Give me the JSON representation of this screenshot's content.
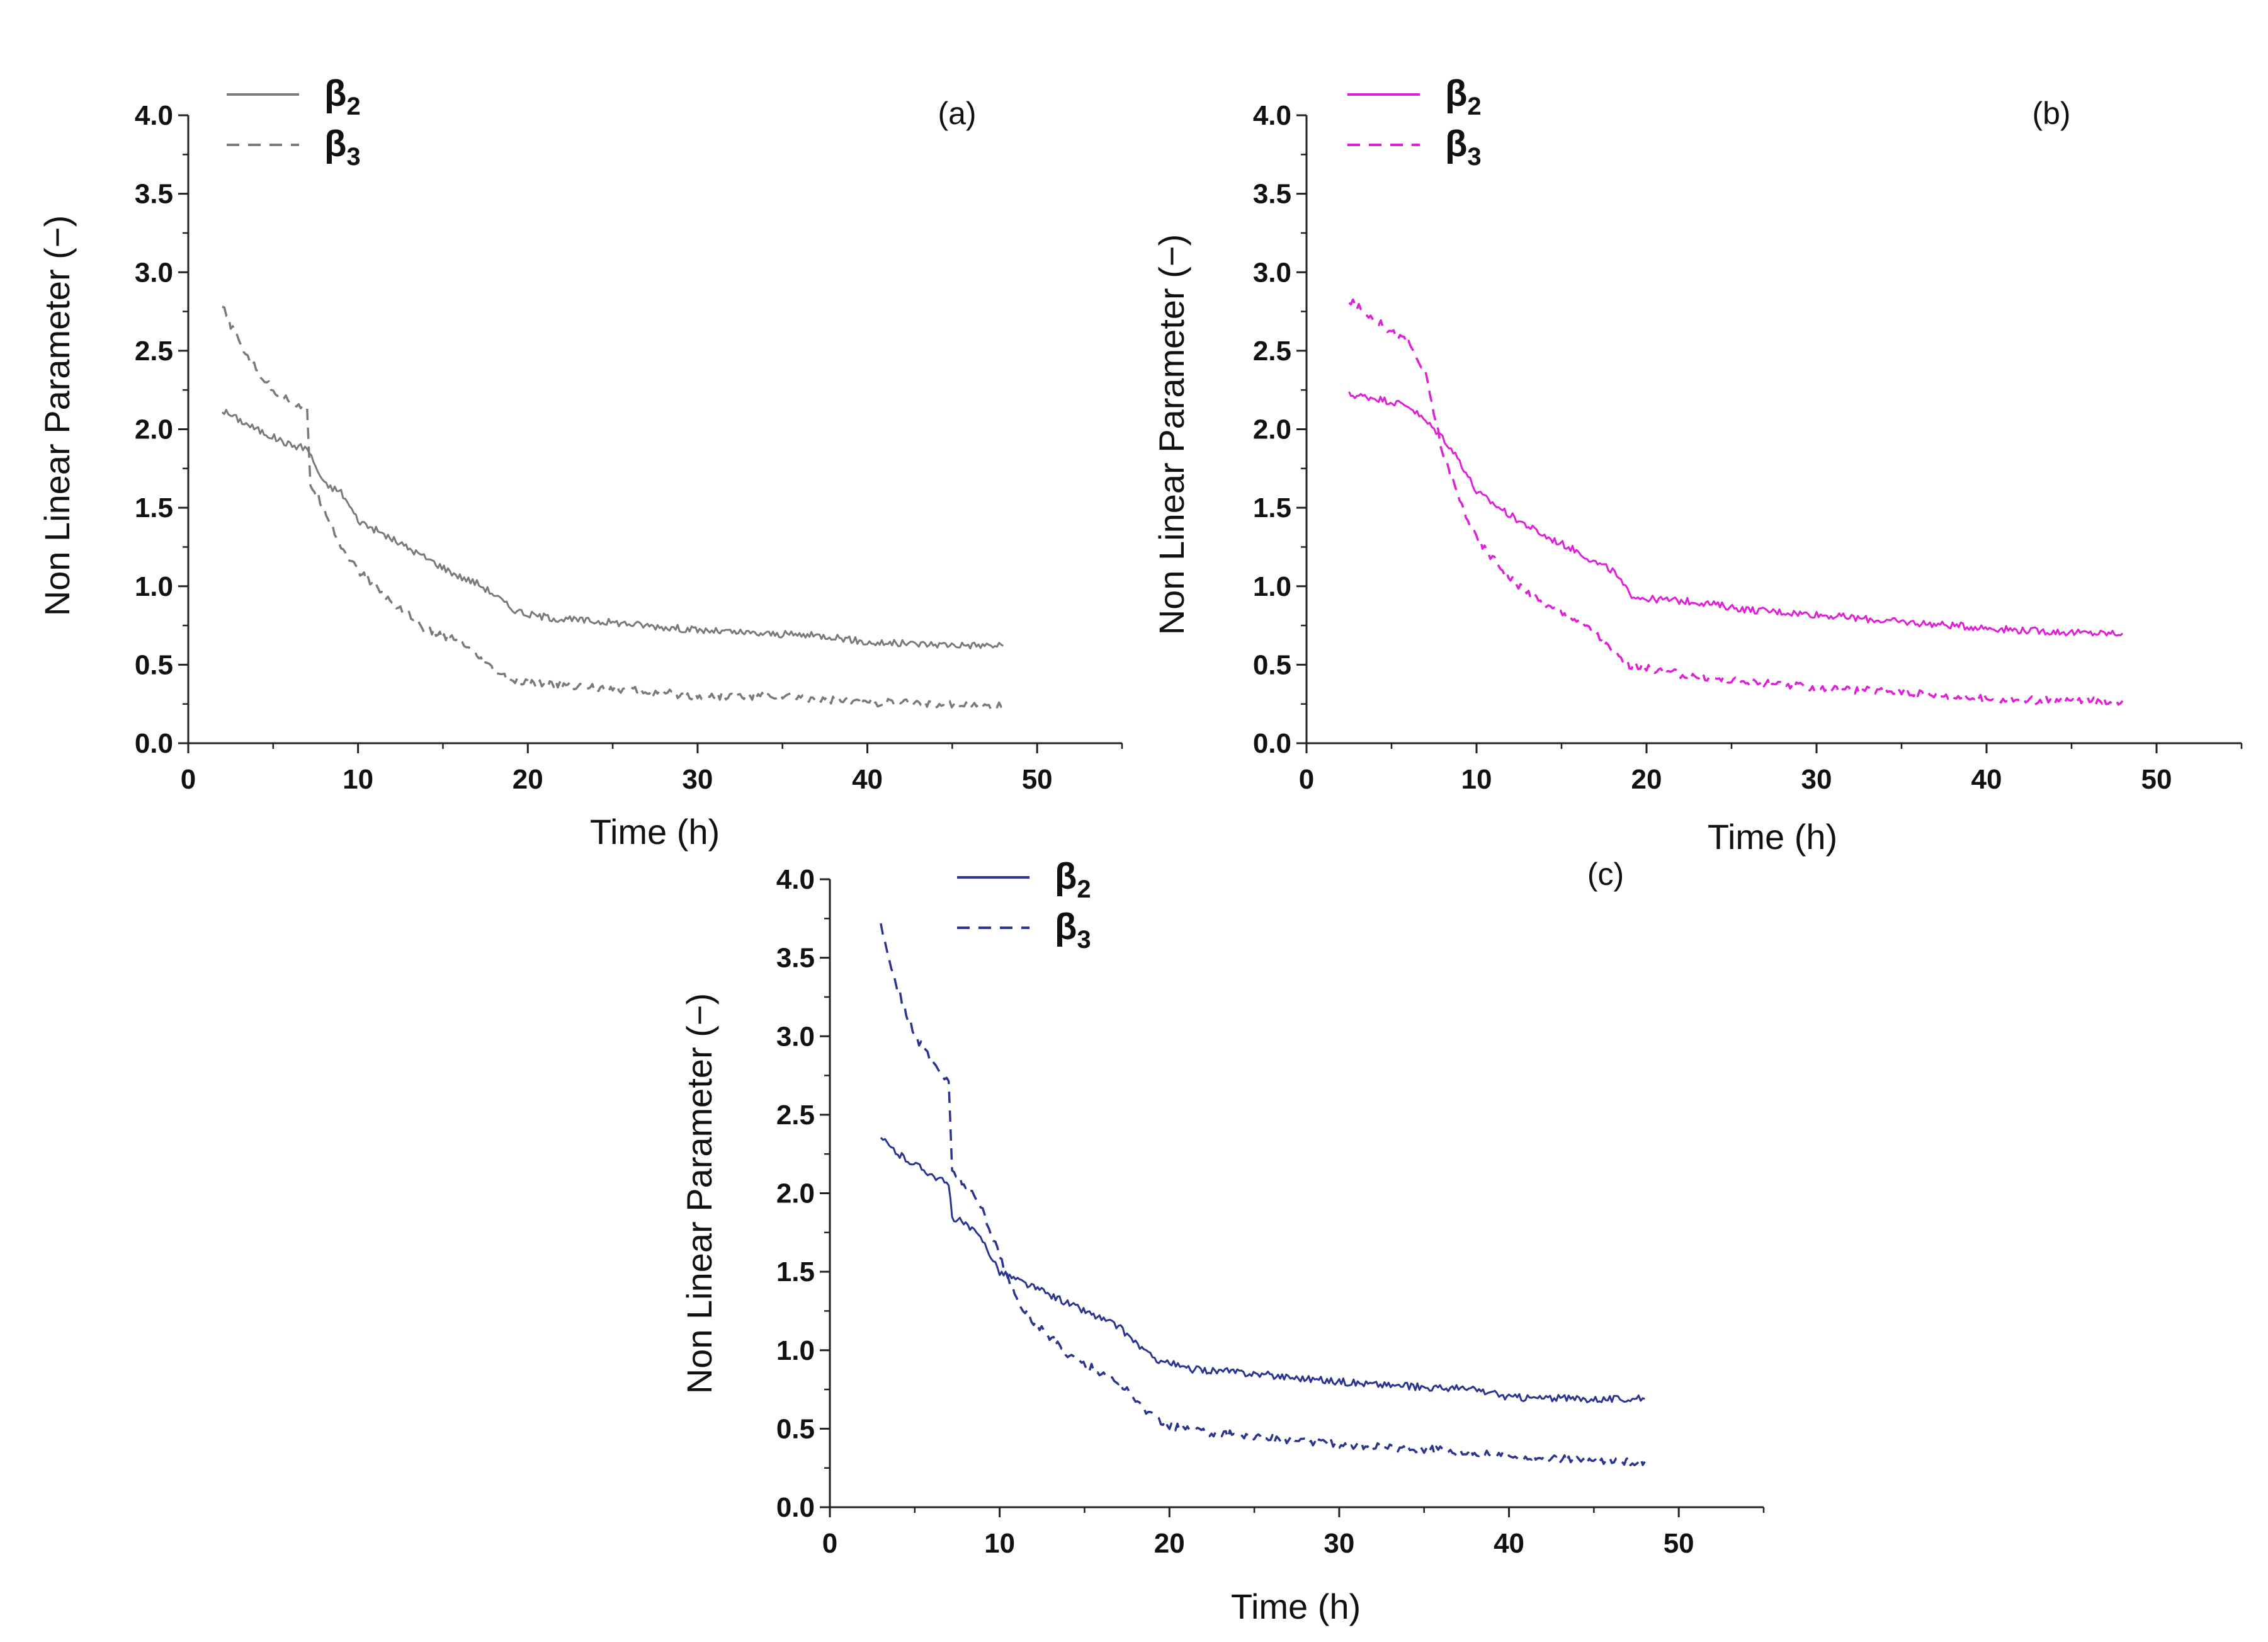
{
  "chart_data": [
    {
      "type": "line",
      "panel_label": "(a)",
      "title": "",
      "xlabel": "Time (h)",
      "ylabel": "Non Linear Parameter (−)",
      "xlim": [
        0,
        55
      ],
      "ylim": [
        0,
        4.0
      ],
      "xticks": [
        "0",
        "10",
        "20",
        "30",
        "40",
        "50"
      ],
      "yticks": [
        "0.0",
        "0.5",
        "1.0",
        "1.5",
        "2.0",
        "2.5",
        "3.0",
        "3.5",
        "4.0"
      ],
      "color": "#7a7a7a",
      "grid": false,
      "legend_position": "top-left",
      "series": [
        {
          "name": "β2",
          "name_base": "β",
          "name_sub": "2",
          "style": "solid",
          "x": [
            2,
            4,
            6,
            7,
            8,
            9,
            10,
            12,
            14,
            16,
            17,
            18,
            19,
            20,
            22,
            25,
            28,
            30,
            33,
            36,
            38,
            40,
            44,
            48
          ],
          "y": [
            2.12,
            2.0,
            1.9,
            1.88,
            1.65,
            1.6,
            1.42,
            1.3,
            1.18,
            1.06,
            1.02,
            0.95,
            0.86,
            0.82,
            0.79,
            0.77,
            0.74,
            0.72,
            0.7,
            0.69,
            0.68,
            0.64,
            0.63,
            0.62
          ]
        },
        {
          "name": "β3",
          "name_base": "β",
          "name_sub": "3",
          "style": "dashed",
          "x": [
            2,
            3,
            4,
            5,
            6,
            7,
            7.2,
            8,
            9,
            10,
            12,
            13,
            14,
            16,
            17,
            18,
            19,
            20,
            22,
            25,
            28,
            30,
            35,
            40,
            44,
            48
          ],
          "y": [
            2.78,
            2.55,
            2.38,
            2.25,
            2.18,
            2.12,
            1.65,
            1.5,
            1.25,
            1.1,
            0.9,
            0.82,
            0.72,
            0.65,
            0.55,
            0.46,
            0.4,
            0.38,
            0.37,
            0.35,
            0.32,
            0.3,
            0.3,
            0.26,
            0.25,
            0.24
          ]
        }
      ]
    },
    {
      "type": "line",
      "panel_label": "(b)",
      "title": "",
      "xlabel": "Time (h)",
      "ylabel": "Non Linear Parameter (−)",
      "xlim": [
        0,
        55
      ],
      "ylim": [
        0,
        4.0
      ],
      "xticks": [
        "0",
        "10",
        "20",
        "30",
        "40",
        "50"
      ],
      "yticks": [
        "0.0",
        "0.5",
        "1.0",
        "1.5",
        "2.0",
        "2.5",
        "3.0",
        "3.5",
        "4.0"
      ],
      "color": "#e020d8",
      "grid": false,
      "legend_position": "top-left",
      "series": [
        {
          "name": "β2",
          "name_base": "β",
          "name_sub": "2",
          "style": "solid",
          "x": [
            2.5,
            4,
            6,
            7,
            8,
            9,
            10,
            12,
            14,
            16,
            17,
            18,
            19,
            20,
            23,
            26,
            30,
            34,
            38,
            42,
            46,
            48
          ],
          "y": [
            2.22,
            2.2,
            2.15,
            2.05,
            1.95,
            1.8,
            1.6,
            1.45,
            1.32,
            1.22,
            1.15,
            1.1,
            0.95,
            0.92,
            0.9,
            0.85,
            0.82,
            0.78,
            0.75,
            0.72,
            0.7,
            0.7
          ]
        },
        {
          "name": "β3",
          "name_base": "β",
          "name_sub": "3",
          "style": "dashed",
          "x": [
            2.5,
            4,
            5,
            6,
            7,
            8,
            9,
            10,
            12,
            14,
            16,
            17,
            18,
            19,
            20,
            22,
            25,
            30,
            35,
            40,
            44,
            48
          ],
          "y": [
            2.82,
            2.7,
            2.62,
            2.55,
            2.35,
            1.85,
            1.55,
            1.3,
            1.05,
            0.88,
            0.78,
            0.7,
            0.58,
            0.5,
            0.48,
            0.44,
            0.4,
            0.35,
            0.33,
            0.28,
            0.27,
            0.27
          ]
        }
      ]
    },
    {
      "type": "line",
      "panel_label": "(c)",
      "title": "",
      "xlabel": "Time (h)",
      "ylabel": "Non Linear Parameter (−)",
      "xlim": [
        0,
        55
      ],
      "ylim": [
        0,
        4.0
      ],
      "xticks": [
        "0",
        "10",
        "20",
        "30",
        "40",
        "50"
      ],
      "yticks": [
        "0.0",
        "0.5",
        "1.0",
        "1.5",
        "2.0",
        "2.5",
        "3.0",
        "3.5",
        "4.0"
      ],
      "color": "#2b3590",
      "grid": false,
      "legend_position": "top-left",
      "series": [
        {
          "name": "β2",
          "name_base": "β",
          "name_sub": "2",
          "style": "solid",
          "x": [
            3,
            4,
            6,
            7,
            7.2,
            8,
            9,
            10,
            12,
            14,
            16,
            17,
            18,
            19,
            20,
            21,
            24,
            27,
            30,
            34,
            38,
            40,
            44,
            48
          ],
          "y": [
            2.35,
            2.25,
            2.12,
            2.05,
            1.85,
            1.8,
            1.7,
            1.5,
            1.4,
            1.3,
            1.2,
            1.15,
            1.05,
            0.95,
            0.92,
            0.88,
            0.86,
            0.83,
            0.8,
            0.77,
            0.75,
            0.7,
            0.69,
            0.69
          ]
        },
        {
          "name": "β3",
          "name_base": "β",
          "name_sub": "3",
          "style": "dashed",
          "x": [
            3,
            4,
            5,
            6,
            7,
            7.2,
            8,
            9,
            10,
            11,
            12,
            14,
            16,
            17,
            18,
            19,
            20,
            22,
            25,
            30,
            35,
            40,
            44,
            48
          ],
          "y": [
            3.7,
            3.3,
            3.0,
            2.85,
            2.7,
            2.15,
            2.05,
            1.9,
            1.6,
            1.32,
            1.18,
            0.98,
            0.85,
            0.8,
            0.68,
            0.58,
            0.52,
            0.48,
            0.45,
            0.4,
            0.37,
            0.33,
            0.3,
            0.29
          ]
        }
      ]
    }
  ]
}
